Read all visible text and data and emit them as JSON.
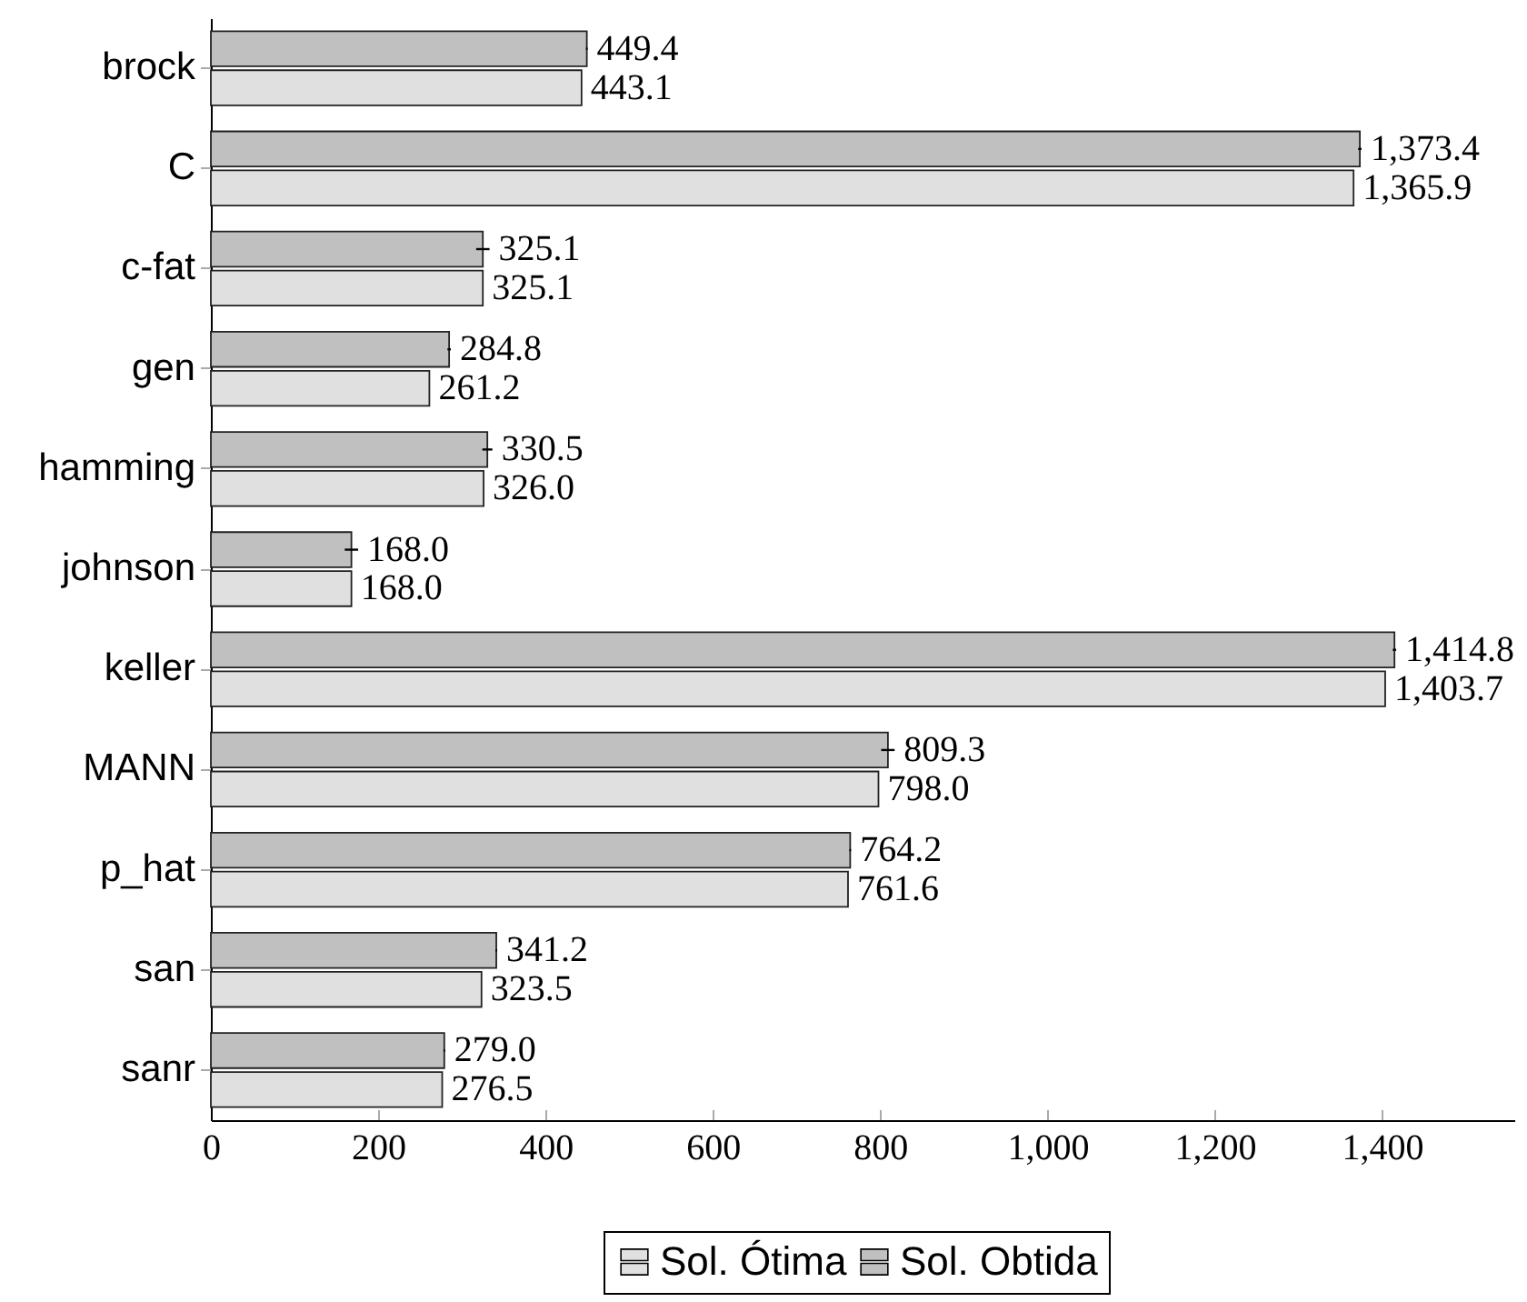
{
  "chart_data": {
    "type": "bar",
    "orientation": "horizontal",
    "categories": [
      "brock",
      "C",
      "c-fat",
      "gen",
      "hamming",
      "johnson",
      "keller",
      "MANN",
      "p_hat",
      "san",
      "sanr"
    ],
    "series": [
      {
        "name": "Sol. Ótima",
        "color": "#e0e0e0",
        "values": [
          443.1,
          1365.9,
          325.1,
          261.2,
          326,
          168,
          1403.7,
          798,
          761.6,
          323.5,
          276.5
        ],
        "value_labels": [
          "443.1",
          "1,365.9",
          "325.1",
          "261.2",
          "326.0",
          "168.0",
          "1,403.7",
          "798.0",
          "761.6",
          "323.5",
          "276.5"
        ]
      },
      {
        "name": "Sol. Obtida",
        "color": "#c0c0c0",
        "values": [
          449.4,
          1373.4,
          325.1,
          284.8,
          330.5,
          168,
          1414.8,
          809.3,
          764.2,
          341.2,
          279
        ],
        "errors": [
          1,
          2,
          8,
          2,
          6,
          8,
          2,
          8,
          1,
          1,
          1
        ],
        "value_labels": [
          "449.4",
          "1,373.4",
          "325.1",
          "284.8",
          "330.5",
          "168.0",
          "1,414.8",
          "809.3",
          "764.2",
          "341.2",
          "279.0"
        ]
      }
    ],
    "xlim": [
      0,
      1558
    ],
    "xticks": [
      0,
      200,
      400,
      600,
      800,
      {
        "value": 1000,
        "label": "1,000"
      },
      {
        "value": 1200,
        "label": "1,200"
      },
      {
        "value": 1400,
        "label": "1,400"
      }
    ],
    "legend": "bottom"
  }
}
